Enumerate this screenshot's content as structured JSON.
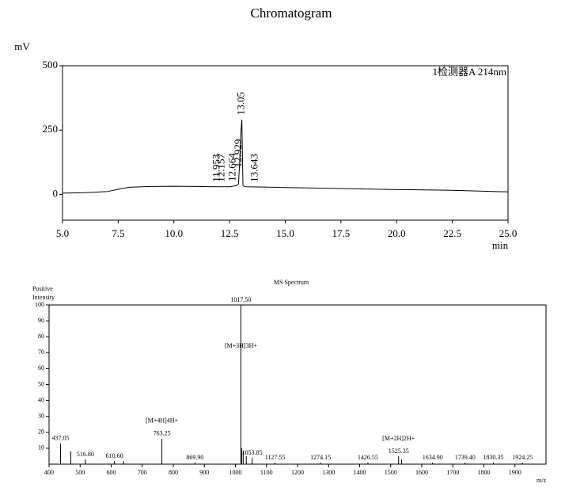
{
  "chart_data": [
    {
      "type": "line",
      "title": "Chromatogram",
      "y_label": "mV",
      "x_label": "min",
      "annotation": "1检测器A 214nm",
      "color": "#000000",
      "xlim": [
        5,
        25
      ],
      "ylim": [
        -100,
        500
      ],
      "xticks": [
        {
          "value": 5,
          "label": "5.0"
        },
        {
          "value": 7.5,
          "label": "7.5"
        },
        {
          "value": 10,
          "label": "10.0"
        },
        {
          "value": 12.5,
          "label": "12.5"
        },
        {
          "value": 15,
          "label": "15.0"
        },
        {
          "value": 17.5,
          "label": "17.5"
        },
        {
          "value": 20,
          "label": "20.0"
        },
        {
          "value": 22.5,
          "label": "22.5"
        },
        {
          "value": 25,
          "label": "25.0"
        }
      ],
      "yticks": [
        0,
        250,
        500
      ],
      "x": [
        5,
        6,
        7,
        7.5,
        8,
        9,
        10,
        11,
        12,
        12.5,
        12.8,
        12.9,
        12.95,
        13.0,
        13.05,
        13.1,
        13.2,
        14,
        15,
        17.5,
        20,
        22.5,
        25
      ],
      "values": [
        5,
        7,
        11,
        20,
        28,
        31,
        32,
        31,
        30,
        30,
        34,
        40,
        120,
        230,
        290,
        35,
        30,
        29,
        27,
        23,
        19,
        16,
        10
      ],
      "peaks": [
        11.953,
        12.157,
        12.664,
        12.929,
        13.05,
        13.643
      ]
    },
    {
      "type": "bar",
      "title": "MS Spectrum",
      "y_label": [
        "Positive",
        "Intensity"
      ],
      "x_label": "m/z",
      "color": "#000000",
      "xlim": [
        400,
        2000
      ],
      "ylim": [
        0,
        100
      ],
      "xticks": [
        400,
        500,
        600,
        700,
        800,
        900,
        1000,
        1100,
        1200,
        1300,
        1400,
        1500,
        1600,
        1700,
        1800,
        1900
      ],
      "yticks": [
        10,
        20,
        30,
        40,
        50,
        60,
        70,
        80,
        90,
        100
      ],
      "x": [
        437.05,
        470,
        516.8,
        610.6,
        640,
        763.25,
        869.9,
        1017.5,
        1020,
        1025,
        1035,
        1053.85,
        1127.55,
        1274.15,
        1426.55,
        1525.35,
        1535,
        1634.9,
        1739.4,
        1830.35,
        1924.25
      ],
      "values": [
        13,
        8,
        3,
        2,
        2,
        16,
        1,
        100,
        10,
        8,
        5,
        4,
        1,
        1,
        1,
        5,
        3,
        1,
        1,
        1,
        1
      ],
      "x_labels": [
        "437.05",
        null,
        "516.80",
        "610.60",
        null,
        "763.25",
        "869.90",
        "1017.50",
        null,
        null,
        null,
        "1053.85",
        "1127.55",
        "1274.15",
        "1426.55",
        "1525.35",
        null,
        "1634.90",
        "1739.40",
        "1830.35",
        "1924.25"
      ],
      "ion_labels": [
        null,
        null,
        null,
        null,
        null,
        "[M+4H]4H+",
        null,
        "[M+3H]3H+",
        null,
        null,
        null,
        null,
        null,
        null,
        null,
        "[M+2H]2H+",
        null,
        null,
        null,
        null,
        null
      ]
    }
  ]
}
